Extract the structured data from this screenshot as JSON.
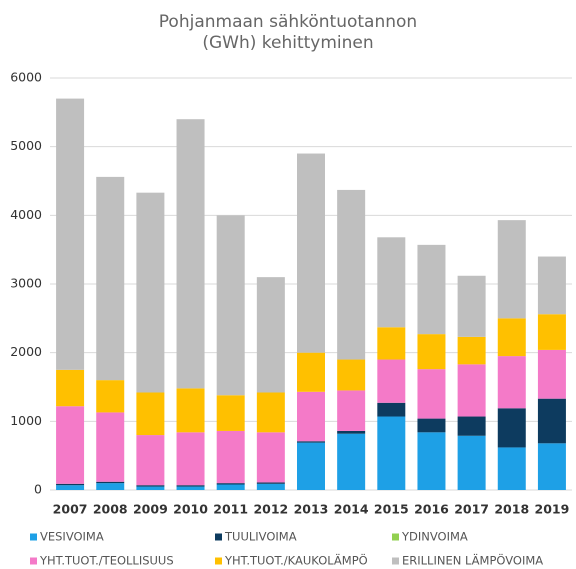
{
  "chart_data": {
    "type": "stacked_bar",
    "title": "Pohjanmaan sähköntuotannon (GWh) kehittyminen",
    "categories": [
      "2007",
      "2008",
      "2009",
      "2010",
      "2011",
      "2012",
      "2013",
      "2014",
      "2015",
      "2016",
      "2017",
      "2018",
      "2019"
    ],
    "series": [
      {
        "name": "VESIVOIMA",
        "color": "#1ea0e6",
        "values": [
          70,
          100,
          50,
          50,
          80,
          90,
          690,
          820,
          1070,
          840,
          790,
          620,
          680
        ]
      },
      {
        "name": "TUULIVOIMA",
        "color": "#0d3b5f",
        "values": [
          20,
          20,
          20,
          20,
          20,
          20,
          20,
          40,
          200,
          200,
          280,
          570,
          650
        ]
      },
      {
        "name": "YDINVOIMA",
        "color": "#92d050",
        "values": [
          0,
          0,
          0,
          0,
          0,
          0,
          0,
          0,
          0,
          0,
          0,
          0,
          0
        ]
      },
      {
        "name": "YHT.TUOT./TEOLLISUUS",
        "color": "#f47ac8",
        "values": [
          1130,
          1010,
          730,
          770,
          760,
          730,
          720,
          590,
          630,
          720,
          760,
          760,
          710
        ]
      },
      {
        "name": "YHT.TUOT./KAUKOLÄMPÖ",
        "color": "#ffc000",
        "values": [
          530,
          470,
          620,
          640,
          520,
          580,
          570,
          450,
          470,
          510,
          400,
          550,
          520
        ]
      },
      {
        "name": "ERILLINEN LÄMPÖVOIMA",
        "color": "#bfbfbf",
        "values": [
          3950,
          2960,
          2910,
          3920,
          2620,
          1680,
          2900,
          2470,
          1310,
          1300,
          890,
          1430,
          840
        ]
      }
    ],
    "ylim": [
      0,
      6000
    ],
    "yticks": [
      0,
      1000,
      2000,
      3000,
      4000,
      5000,
      6000
    ],
    "grid": true,
    "legend": "bottom"
  }
}
